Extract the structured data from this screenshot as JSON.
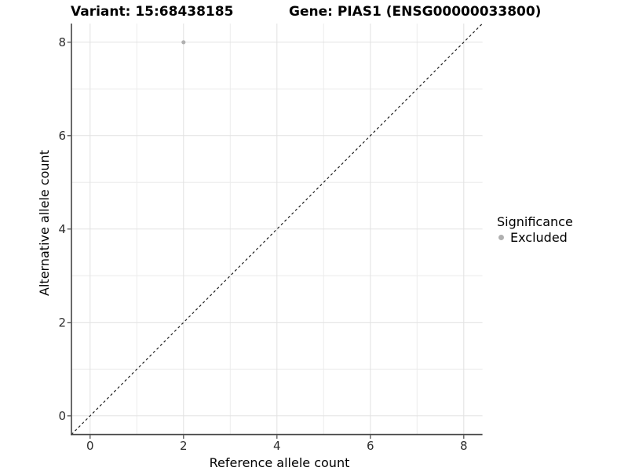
{
  "chart_data": {
    "type": "scatter",
    "titles": {
      "left": "Variant: 15:68438185",
      "right": "Gene: PIAS1 (ENSG00000033800)"
    },
    "xlabel": "Reference allele count",
    "ylabel": "Alternative allele count",
    "xlim": [
      -0.4,
      8.4
    ],
    "ylim": [
      -0.4,
      8.4
    ],
    "x_ticks": [
      0,
      2,
      4,
      6,
      8
    ],
    "y_ticks": [
      0,
      2,
      4,
      6,
      8
    ],
    "x_minor_gridlines": [
      1,
      3,
      5,
      7
    ],
    "y_minor_gridlines": [
      1,
      3,
      5,
      7
    ],
    "grid": "on",
    "identity_line": {
      "slope": 1,
      "intercept": 0,
      "style": "dashed",
      "color": "#161616"
    },
    "series": [
      {
        "name": "Excluded",
        "color": "#b0b0b0",
        "points": [
          {
            "x": 2,
            "y": 8
          }
        ]
      }
    ],
    "legend": {
      "title": "Significance",
      "position": "right",
      "entries": [
        {
          "label": "Excluded",
          "color": "#b0b0b0"
        }
      ]
    },
    "style": {
      "major_grid_color": "#e2e2e2",
      "minor_grid_color": "#ececec",
      "axis_line_color": "#454545",
      "tick_label_color": "#2e2e2e"
    }
  }
}
